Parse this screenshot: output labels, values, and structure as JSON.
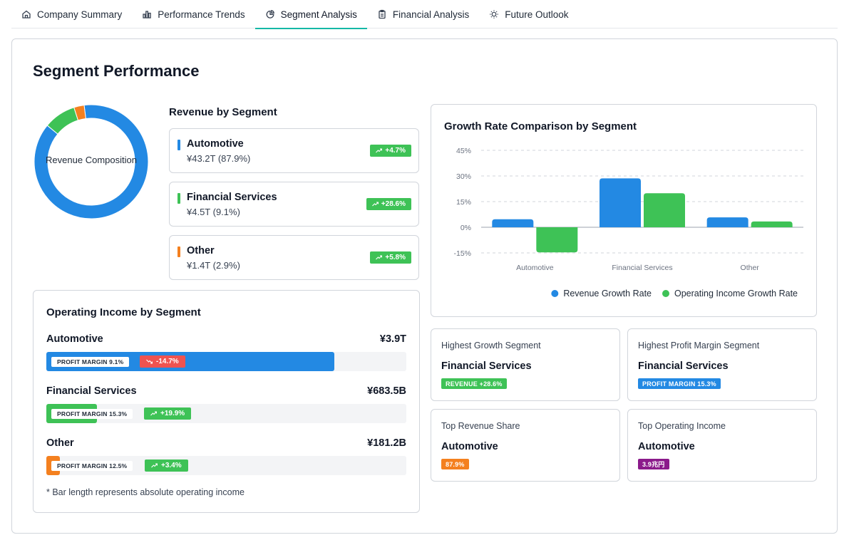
{
  "tabs": [
    {
      "label": "Company Summary",
      "icon": "home-icon"
    },
    {
      "label": "Performance Trends",
      "icon": "bar-chart-icon"
    },
    {
      "label": "Segment Analysis",
      "icon": "pie-chart-icon",
      "active": true
    },
    {
      "label": "Financial Analysis",
      "icon": "clipboard-icon"
    },
    {
      "label": "Future Outlook",
      "icon": "lightbulb-icon"
    }
  ],
  "page_title": "Segment Performance",
  "colors": {
    "automotive": "#2389e3",
    "financial": "#3ec256",
    "other": "#f4801f",
    "negative": "#ef5350",
    "purple": "#8b1a8b"
  },
  "donut": {
    "label": "Revenue Composition",
    "slices": [
      {
        "name": "Automotive",
        "share": 87.9,
        "color": "#2389e3"
      },
      {
        "name": "Financial Services",
        "share": 9.1,
        "color": "#3ec256"
      },
      {
        "name": "Other",
        "share": 2.9,
        "color": "#f4801f"
      }
    ]
  },
  "revenue": {
    "title": "Revenue by Segment",
    "items": [
      {
        "name": "Automotive",
        "value": "¥43.2T (87.9%)",
        "growth": "+4.7%",
        "color": "#2389e3"
      },
      {
        "name": "Financial Services",
        "value": "¥4.5T (9.1%)",
        "growth": "+28.6%",
        "color": "#3ec256"
      },
      {
        "name": "Other",
        "value": "¥1.4T (2.9%)",
        "growth": "+5.8%",
        "color": "#f4801f"
      }
    ]
  },
  "operating": {
    "title": "Operating Income by Segment",
    "items": [
      {
        "name": "Automotive",
        "amount": "¥3.9T",
        "margin": "PROFIT MARGIN 9.1%",
        "change": "-14.7%",
        "direction": "down",
        "fill": 0.8,
        "color": "#2389e3"
      },
      {
        "name": "Financial Services",
        "amount": "¥683.5B",
        "margin": "PROFIT MARGIN 15.3%",
        "change": "+19.9%",
        "direction": "up",
        "fill": 0.14,
        "color": "#3ec256"
      },
      {
        "name": "Other",
        "amount": "¥181.2B",
        "margin": "PROFIT MARGIN 12.5%",
        "change": "+3.4%",
        "direction": "up",
        "fill": 0.037,
        "color": "#f4801f"
      }
    ],
    "note": "* Bar length represents absolute operating income"
  },
  "chart_data": {
    "type": "bar",
    "title": "Growth Rate Comparison by Segment",
    "categories": [
      "Automotive",
      "Financial Services",
      "Other"
    ],
    "series": [
      {
        "name": "Revenue Growth Rate",
        "values": [
          4.7,
          28.6,
          5.8
        ],
        "color": "#2389e3"
      },
      {
        "name": "Operating Income Growth Rate",
        "values": [
          -14.7,
          19.9,
          3.4
        ],
        "color": "#3ec256"
      }
    ],
    "yticks": [
      "45%",
      "30%",
      "15%",
      "0%",
      "-15%"
    ],
    "ylim": [
      -15,
      45
    ],
    "grid": true,
    "legend": "bottom-right"
  },
  "stats": [
    {
      "title": "Highest Growth Segment",
      "value": "Financial Services",
      "badge": "REVENUE +28.6%",
      "badge_color": "#3ec256"
    },
    {
      "title": "Highest Profit Margin Segment",
      "value": "Financial Services",
      "badge": "PROFIT MARGIN 15.3%",
      "badge_color": "#2389e3"
    },
    {
      "title": "Top Revenue Share",
      "value": "Automotive",
      "badge": "87.9%",
      "badge_color": "#f4801f"
    },
    {
      "title": "Top Operating Income",
      "value": "Automotive",
      "badge": "3.9兆円",
      "badge_color": "#8b1a8b"
    }
  ]
}
